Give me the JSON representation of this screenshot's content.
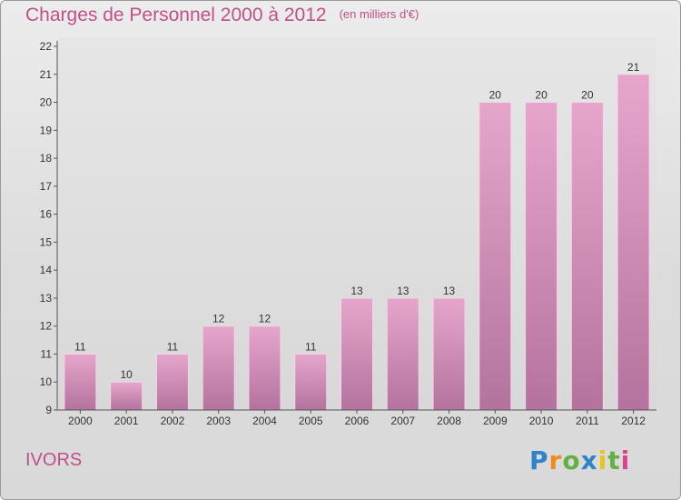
{
  "chart_title": "Charges de Personnel 2000 à 2012",
  "chart_unit": "(en milliers d'€)",
  "commune": "IVORS",
  "logo_text": "Proxiti",
  "colors": {
    "bar_top": "#e6a6cc",
    "bar_bottom": "#b3739e",
    "title": "#c0508a"
  },
  "chart_data": {
    "type": "bar",
    "title": "Charges de Personnel 2000 à 2012",
    "subtitle": "(en milliers d'€)",
    "categories": [
      "2000",
      "2001",
      "2002",
      "2003",
      "2004",
      "2005",
      "2006",
      "2007",
      "2008",
      "2009",
      "2010",
      "2011",
      "2012"
    ],
    "values": [
      11,
      10,
      11,
      12,
      12,
      11,
      13,
      13,
      13,
      20,
      20,
      20,
      21
    ],
    "ylim": [
      9,
      22
    ],
    "yticks": [
      9,
      10,
      11,
      12,
      13,
      14,
      15,
      16,
      17,
      18,
      19,
      20,
      21,
      22
    ],
    "xlabel": "",
    "ylabel": "",
    "grid": false,
    "data_labels": true
  }
}
